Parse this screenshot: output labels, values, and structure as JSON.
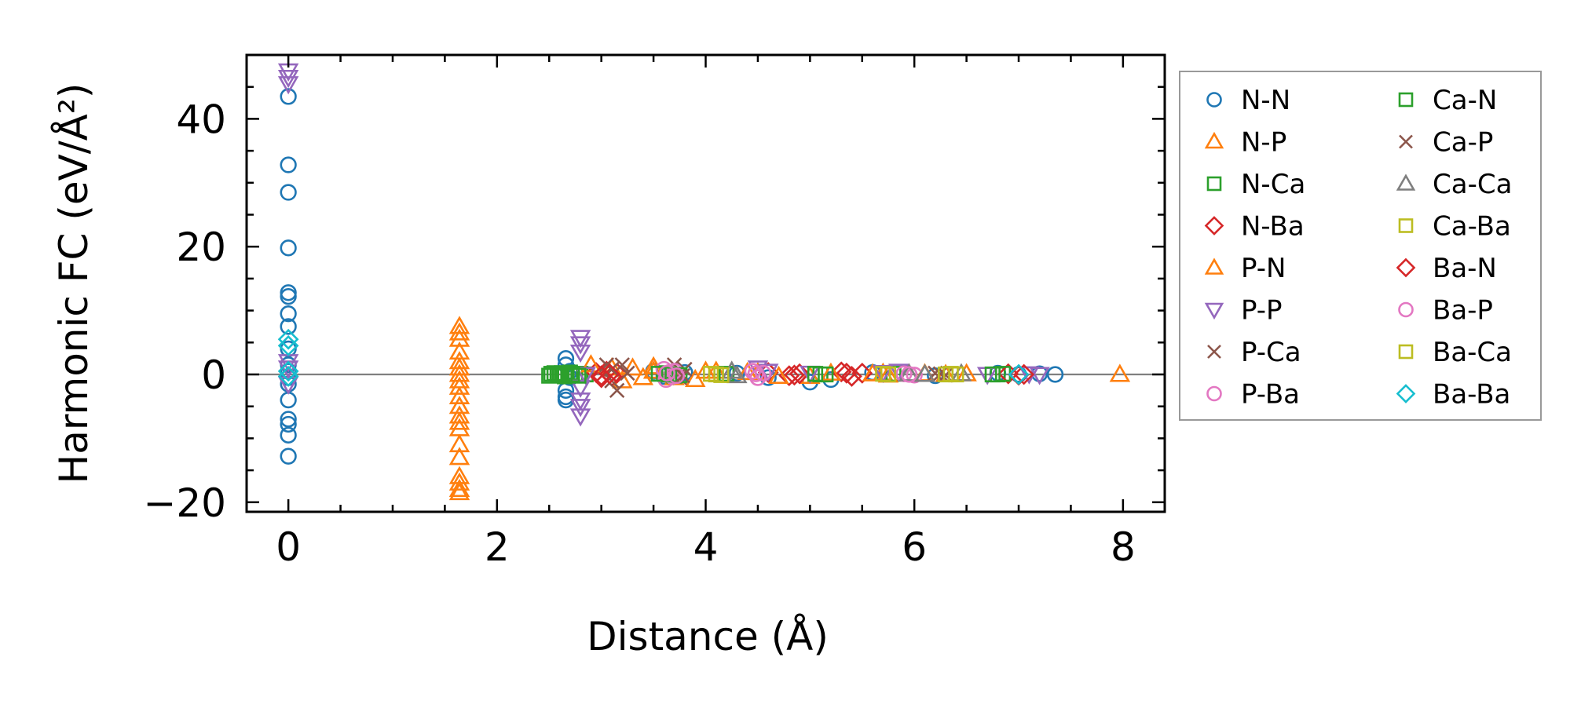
{
  "chart_data": {
    "type": "scatter",
    "xlabel": "Distance (Å)",
    "ylabel": "Harmonic FC (eV/Å²)",
    "xlim": [
      -0.4,
      8.4
    ],
    "ylim": [
      -21.5,
      50
    ],
    "xticks": [
      0,
      2,
      4,
      6,
      8
    ],
    "xtick_labels": [
      "0",
      "2",
      "4",
      "6",
      "8"
    ],
    "yticks": [
      -20,
      0,
      20,
      40
    ],
    "ytick_labels": [
      "−20",
      "0",
      "20",
      "40"
    ],
    "reference_line_y": 0,
    "grid": false,
    "legend_position": "outside-right",
    "legend_columns": 2,
    "series": [
      {
        "name": "N-N",
        "marker": "circle",
        "color": "#1f77b4",
        "x": [
          0,
          0,
          0,
          0,
          0,
          0,
          0,
          0,
          0,
          0,
          0,
          0,
          0,
          0,
          0,
          0,
          0,
          0,
          2.66,
          2.66,
          2.66,
          2.66,
          2.66,
          2.7,
          2.7,
          3.5,
          3.6,
          3.8,
          4.3,
          4.6,
          5.0,
          5.2,
          5.6,
          6.2,
          6.8,
          7.0,
          7.2,
          7.35
        ],
        "y": [
          43.5,
          32.8,
          28.5,
          19.8,
          12.8,
          12.2,
          9.5,
          7.5,
          4.0,
          1.5,
          0.5,
          -0.5,
          -1.5,
          -4.0,
          -7.0,
          -7.8,
          -9.5,
          -12.8,
          2.5,
          1.5,
          -2.5,
          -3.5,
          -4.0,
          0.5,
          -0.5,
          0.5,
          -0.3,
          0.3,
          0.2,
          -0.5,
          -1.2,
          -0.8,
          0.3,
          -0.2,
          0.2,
          0.0,
          0.1,
          0.0
        ]
      },
      {
        "name": "N-P",
        "marker": "triangle-up",
        "color": "#ff7f0e",
        "x": [
          1.64,
          1.64,
          1.64,
          1.64,
          1.64,
          1.64,
          1.64,
          1.64,
          1.64,
          1.64,
          1.64,
          1.64,
          1.64,
          1.64,
          1.64,
          1.64,
          1.64,
          1.64,
          1.64,
          1.64,
          3.1,
          3.2,
          3.5,
          3.7,
          4.1,
          4.5,
          5.0,
          5.7,
          6.5,
          7.97
        ],
        "y": [
          7.5,
          6.5,
          5.5,
          3.5,
          2.0,
          1.0,
          0.0,
          -1.0,
          -2.0,
          -3.5,
          -5.0,
          -6.5,
          -7.5,
          -8.5,
          -11.0,
          -13.0,
          -16.0,
          -17.0,
          -18.0,
          -18.5,
          1.0,
          -1.0,
          0.5,
          -0.5,
          0.5,
          0.3,
          -0.3,
          0.2,
          0.1,
          0.0
        ]
      },
      {
        "name": "N-Ca",
        "marker": "square",
        "color": "#2ca02c",
        "x": [
          2.5,
          2.55,
          2.6,
          2.65,
          2.7,
          2.75,
          2.8,
          2.85,
          3.6,
          3.7,
          4.2,
          5.1,
          5.8,
          6.8
        ],
        "y": [
          -0.2,
          0.2,
          0.0,
          -0.3,
          0.3,
          -0.1,
          0.1,
          0.0,
          0.2,
          -0.2,
          0.1,
          0.0,
          0.1,
          0.0
        ]
      },
      {
        "name": "N-Ba",
        "marker": "diamond",
        "color": "#d62728",
        "x": [
          2.95,
          3.0,
          3.05,
          3.1,
          3.15,
          4.6,
          4.8,
          4.9,
          5.3,
          5.4,
          5.5,
          6.9,
          7.0
        ],
        "y": [
          0.3,
          -0.5,
          0.5,
          -0.3,
          0.2,
          0.3,
          -0.2,
          0.1,
          0.4,
          -0.3,
          0.2,
          0.1,
          -0.1
        ]
      },
      {
        "name": "P-N",
        "marker": "triangle-up",
        "color": "#ff7f0e",
        "x": [
          2.9,
          3.3,
          3.4,
          3.5,
          3.9,
          4.0,
          4.4,
          4.7,
          5.2,
          5.6,
          5.75,
          6.1,
          6.3
        ],
        "y": [
          1.5,
          1.0,
          -0.5,
          1.2,
          -0.8,
          0.5,
          0.3,
          -0.3,
          0.2,
          0.1,
          -0.1,
          0.1,
          0.0
        ]
      },
      {
        "name": "P-P",
        "marker": "triangle-down",
        "color": "#9467bd",
        "x": [
          0,
          0,
          0,
          0,
          0,
          0,
          2.8,
          2.8,
          2.8,
          2.8,
          2.8,
          2.8,
          2.8,
          2.85,
          4.5,
          4.6,
          5.0,
          5.7,
          5.85,
          6.7,
          7.1,
          7.2
        ],
        "y": [
          47.5,
          46.5,
          45.5,
          2.0,
          1.0,
          -1.5,
          5.8,
          4.8,
          3.5,
          -2.0,
          -4.0,
          -5.0,
          -6.5,
          0.0,
          1.0,
          0.5,
          0.2,
          0.3,
          0.5,
          0.0,
          0.1,
          0.0
        ]
      },
      {
        "name": "P-Ca",
        "marker": "x",
        "color": "#8c564b",
        "x": [
          3.05,
          3.1,
          3.15,
          3.2,
          3.7,
          3.75,
          3.8,
          6.2,
          6.3
        ],
        "y": [
          1.5,
          -1.0,
          -2.5,
          1.5,
          1.5,
          -0.5,
          0.8,
          0.2,
          -0.1
        ]
      },
      {
        "name": "P-Ba",
        "marker": "circle",
        "color": "#e377c2",
        "x": [
          3.6,
          3.62,
          3.65,
          3.68,
          3.7,
          4.45,
          4.5,
          4.55,
          5.9,
          6.0
        ],
        "y": [
          0.8,
          -0.8,
          0.3,
          -0.3,
          0.5,
          0.5,
          -0.5,
          0.2,
          0.1,
          -0.1
        ]
      },
      {
        "name": "Ca-N",
        "marker": "square",
        "color": "#2ca02c",
        "x": [
          2.52,
          2.58,
          2.62,
          2.72,
          2.78,
          3.55,
          3.65,
          3.75,
          5.05,
          5.15,
          6.75,
          6.85
        ],
        "y": [
          0.1,
          -0.1,
          0.2,
          0.0,
          -0.2,
          0.1,
          0.0,
          -0.1,
          0.1,
          0.0,
          0.0,
          0.1
        ]
      },
      {
        "name": "Ca-P",
        "marker": "x",
        "color": "#8c564b",
        "x": [
          3.1,
          3.25,
          3.78,
          6.25
        ],
        "y": [
          0.8,
          0.2,
          -0.2,
          0.1
        ]
      },
      {
        "name": "Ca-Ca",
        "marker": "triangle-up",
        "color": "#7f7f7f",
        "x": [
          4.25,
          4.3,
          5.95,
          6.1,
          6.45
        ],
        "y": [
          0.5,
          -0.2,
          0.1,
          0.0,
          0.1
        ]
      },
      {
        "name": "Ca-Ba",
        "marker": "square",
        "color": "#bcbd22",
        "x": [
          4.05,
          4.15,
          5.7,
          6.3,
          6.4
        ],
        "y": [
          0.1,
          -0.1,
          0.1,
          0.0,
          0.0
        ]
      },
      {
        "name": "Ba-N",
        "marker": "diamond",
        "color": "#d62728",
        "x": [
          3.0,
          3.08,
          4.85,
          5.35,
          7.05
        ],
        "y": [
          -0.2,
          0.1,
          -0.1,
          0.2,
          0.0
        ]
      },
      {
        "name": "Ba-P",
        "marker": "circle",
        "color": "#e377c2",
        "x": [
          3.63,
          3.72,
          4.48,
          5.95
        ],
        "y": [
          0.2,
          -0.2,
          0.1,
          0.0
        ]
      },
      {
        "name": "Ba-Ca",
        "marker": "square",
        "color": "#bcbd22",
        "x": [
          4.1,
          5.75,
          6.35
        ],
        "y": [
          0.0,
          0.0,
          0.1
        ]
      },
      {
        "name": "Ba-Ba",
        "marker": "diamond",
        "color": "#17becf",
        "x": [
          0,
          0,
          0,
          0,
          7.0
        ],
        "y": [
          5.5,
          4.5,
          0.5,
          -0.3,
          0.0
        ]
      }
    ]
  }
}
